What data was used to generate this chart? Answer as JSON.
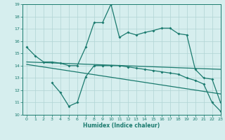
{
  "line1_x": [
    0,
    1,
    2,
    3,
    4,
    5,
    6,
    7,
    8,
    9,
    10,
    11,
    12,
    13,
    14,
    15,
    16,
    17,
    18,
    19,
    20,
    21,
    22,
    23
  ],
  "line1_y": [
    15.5,
    14.8,
    14.3,
    14.3,
    14.2,
    14.0,
    14.0,
    15.5,
    17.5,
    17.5,
    19.0,
    16.3,
    16.7,
    16.5,
    16.7,
    16.85,
    17.05,
    17.05,
    16.6,
    16.5,
    13.7,
    13.0,
    12.9,
    11.0
  ],
  "line2_x": [
    3,
    4,
    5,
    6,
    7,
    8,
    9,
    10,
    11,
    12,
    13,
    14,
    15,
    16,
    17,
    18,
    19,
    20,
    21,
    22,
    23
  ],
  "line2_y": [
    12.6,
    11.8,
    10.7,
    11.0,
    13.1,
    14.0,
    14.0,
    14.0,
    14.0,
    13.9,
    13.8,
    13.7,
    13.6,
    13.5,
    13.4,
    13.3,
    13.0,
    12.8,
    12.5,
    11.0,
    10.3
  ],
  "line3_x": [
    0,
    23
  ],
  "line3_y": [
    14.3,
    13.7
  ],
  "line4_x": [
    0,
    23
  ],
  "line4_y": [
    14.1,
    11.7
  ],
  "color": "#1a7a6e",
  "bg_color": "#d6eeee",
  "grid_color": "#b0d4d4",
  "xlabel": "Humidex (Indice chaleur)",
  "ylim": [
    10,
    19
  ],
  "xlim": [
    -0.5,
    23
  ],
  "yticks": [
    10,
    11,
    12,
    13,
    14,
    15,
    16,
    17,
    18,
    19
  ],
  "xticks": [
    0,
    1,
    2,
    3,
    4,
    5,
    6,
    7,
    8,
    9,
    10,
    11,
    12,
    13,
    14,
    15,
    16,
    17,
    18,
    19,
    20,
    21,
    22,
    23
  ]
}
